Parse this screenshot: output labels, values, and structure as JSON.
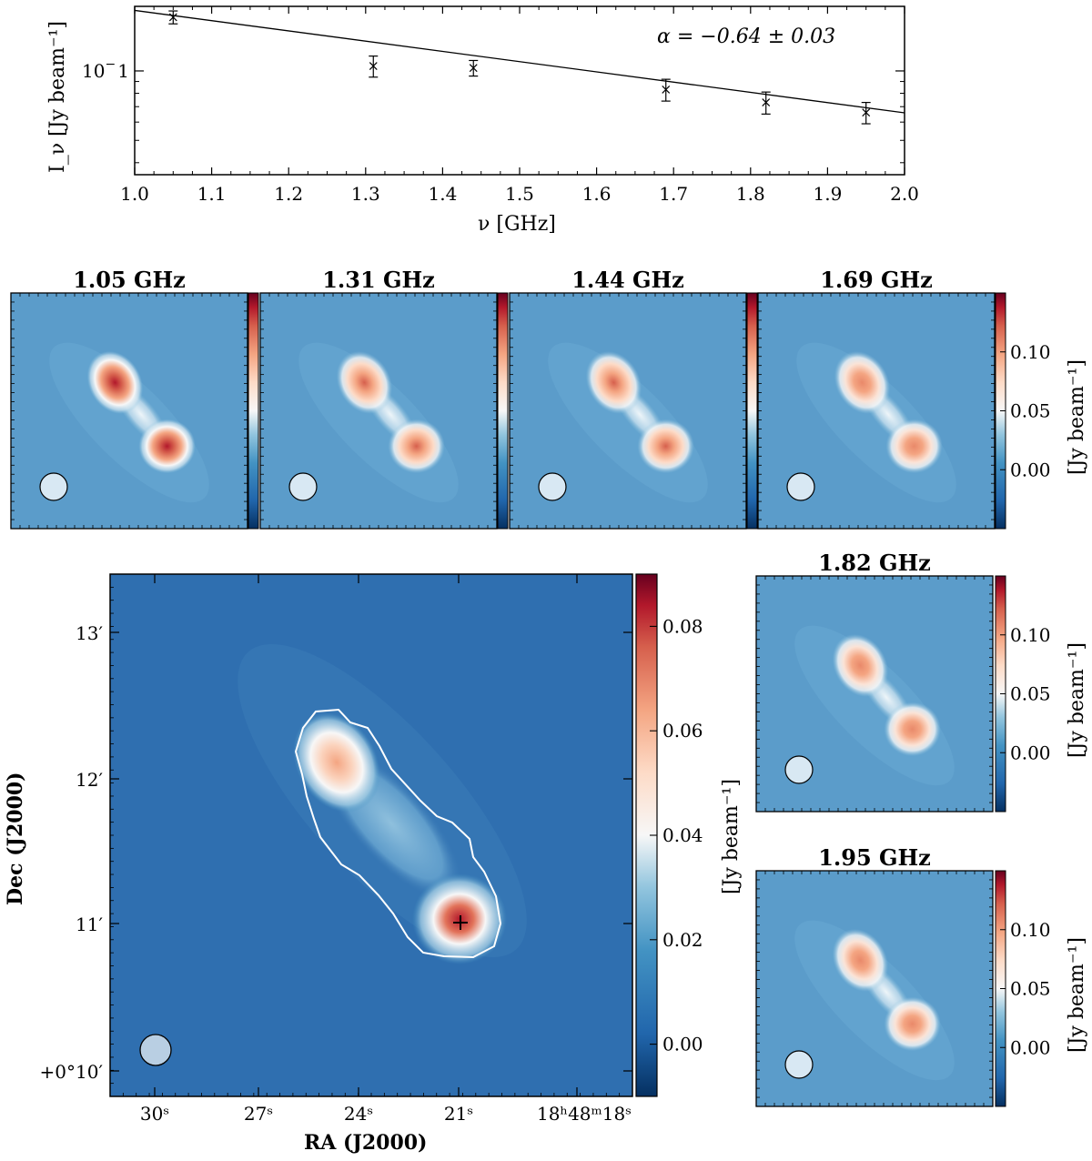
{
  "colors": {
    "map_background": "#5b9cca",
    "main_background": "#2f6fb0",
    "diverging_low": "#053061",
    "diverging_mid": "#f7f7f7",
    "diverging_high": "#67001f",
    "contour": "#ffffff",
    "beam_fill": "#d8e8f3",
    "main_beam_fill": "#b9cfe3"
  },
  "chart_data": [
    {
      "type": "scatter",
      "panel": "spectrum",
      "xlabel": "ν [GHz]",
      "ylabel": "I_ν [Jy beam⁻¹]",
      "xlim": [
        1.0,
        2.0
      ],
      "ylim_log10": [
        -1.45,
        -0.72
      ],
      "yscale": "log",
      "xticks": [
        "1.0",
        "1.1",
        "1.2",
        "1.3",
        "1.4",
        "1.5",
        "1.6",
        "1.7",
        "1.8",
        "1.9",
        "2.0"
      ],
      "yticks": [
        {
          "label": "10⁻¹",
          "value": 0.1
        }
      ],
      "annotation": "α = −0.64 ± 0.03",
      "points": [
        {
          "x": 1.05,
          "y": 0.171,
          "err": 0.011
        },
        {
          "x": 1.31,
          "y": 0.105,
          "err": 0.011
        },
        {
          "x": 1.44,
          "y": 0.103,
          "err": 0.008
        },
        {
          "x": 1.69,
          "y": 0.083,
          "err": 0.009
        },
        {
          "x": 1.82,
          "y": 0.073,
          "err": 0.008
        },
        {
          "x": 1.95,
          "y": 0.066,
          "err": 0.007
        }
      ],
      "fit": {
        "alpha": -0.64,
        "x": [
          1.0,
          2.0
        ],
        "y": [
          0.183,
          0.0658
        ]
      }
    },
    {
      "type": "heatmap",
      "panel": "channel-maps",
      "channels": [
        "1.05 GHz",
        "1.31 GHz",
        "1.44 GHz",
        "1.69 GHz",
        "1.82 GHz",
        "1.95 GHz"
      ],
      "colorbar_label": "[Jy beam⁻¹]",
      "colorbar_range": [
        -0.05,
        0.15
      ],
      "colorbar_ticks": [
        "0.10",
        "0.05",
        "0.00"
      ],
      "peak_values": [
        0.11,
        0.08,
        0.08,
        0.065,
        0.06,
        0.06
      ]
    },
    {
      "type": "heatmap",
      "panel": "main-map",
      "xlabel": "RA (J2000)",
      "ylabel": "Dec (J2000)",
      "ra_ticks": [
        "30ˢ",
        "27ˢ",
        "24ˢ",
        "21ˢ",
        "18ʰ48ᵐ18ˢ"
      ],
      "dec_ticks": [
        "13′",
        "12′",
        "11′",
        "+0°10′"
      ],
      "colorbar_label": "[Jy beam⁻¹]",
      "colorbar_range": [
        -0.01,
        0.09
      ],
      "colorbar_ticks": [
        "0.08",
        "0.06",
        "0.04",
        "0.02",
        "0.00"
      ],
      "peak_value": 0.085
    }
  ]
}
